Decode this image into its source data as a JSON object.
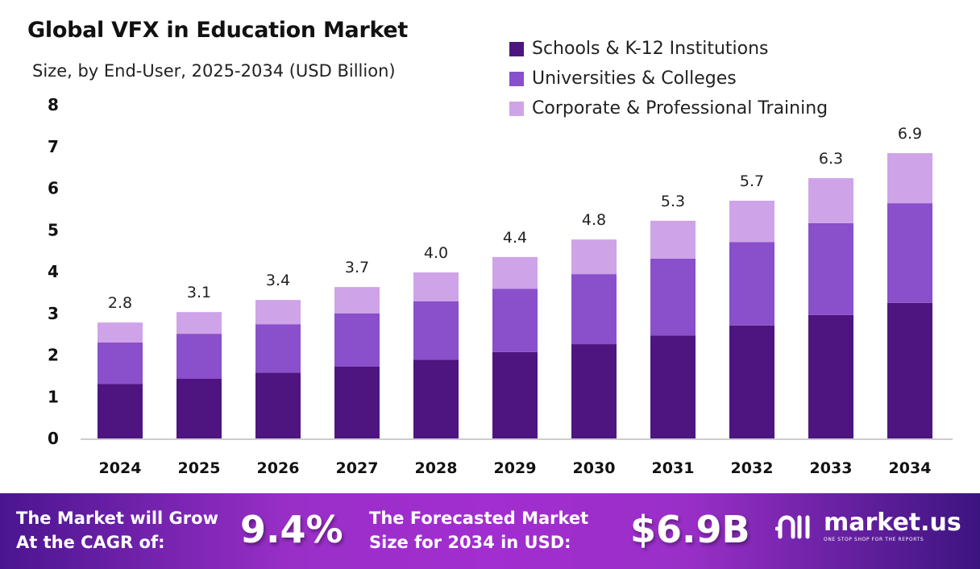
{
  "chart_data": {
    "type": "stacked-bar",
    "title": "Global VFX in Education Market",
    "subtitle": "Size, by End-User, 2025-2034 (USD Billion)",
    "categories": [
      "2024",
      "2025",
      "2026",
      "2027",
      "2028",
      "2029",
      "2030",
      "2031",
      "2032",
      "2033",
      "2034"
    ],
    "series": [
      {
        "name": "Schools & K-12 Institutions",
        "color": "#4e1580",
        "values": [
          1.31,
          1.43,
          1.58,
          1.72,
          1.89,
          2.07,
          2.26,
          2.47,
          2.71,
          2.96,
          3.25
        ]
      },
      {
        "name": "Universities & Colleges",
        "color": "#8a4fcb",
        "values": [
          0.99,
          1.08,
          1.16,
          1.28,
          1.4,
          1.52,
          1.68,
          1.84,
          2.0,
          2.2,
          2.39
        ]
      },
      {
        "name": "Corporate & Professional Training",
        "color": "#cfa3e8",
        "values": [
          0.48,
          0.52,
          0.58,
          0.63,
          0.69,
          0.76,
          0.83,
          0.91,
          0.99,
          1.08,
          1.2
        ]
      }
    ],
    "totals_labels": [
      "2.8",
      "3.1",
      "3.4",
      "3.7",
      "4.0",
      "4.4",
      "4.8",
      "5.3",
      "5.7",
      "6.3",
      "6.9"
    ],
    "yticks": [
      "0",
      "1",
      "2",
      "3",
      "4",
      "5",
      "6",
      "7",
      "8"
    ],
    "ylim": [
      0,
      8
    ],
    "grid": false,
    "legend": "top-right"
  },
  "banner": {
    "cagr_text_1": "The Market will Grow",
    "cagr_text_2": "At the CAGR of:",
    "cagr_value": "9.4%",
    "forecast_text_1": "The Forecasted Market",
    "forecast_text_2": "Size for 2034 in USD:",
    "forecast_value": "$6.9B",
    "logo_name": "market.us",
    "logo_tagline": "ONE STOP SHOP FOR THE REPORTS"
  }
}
